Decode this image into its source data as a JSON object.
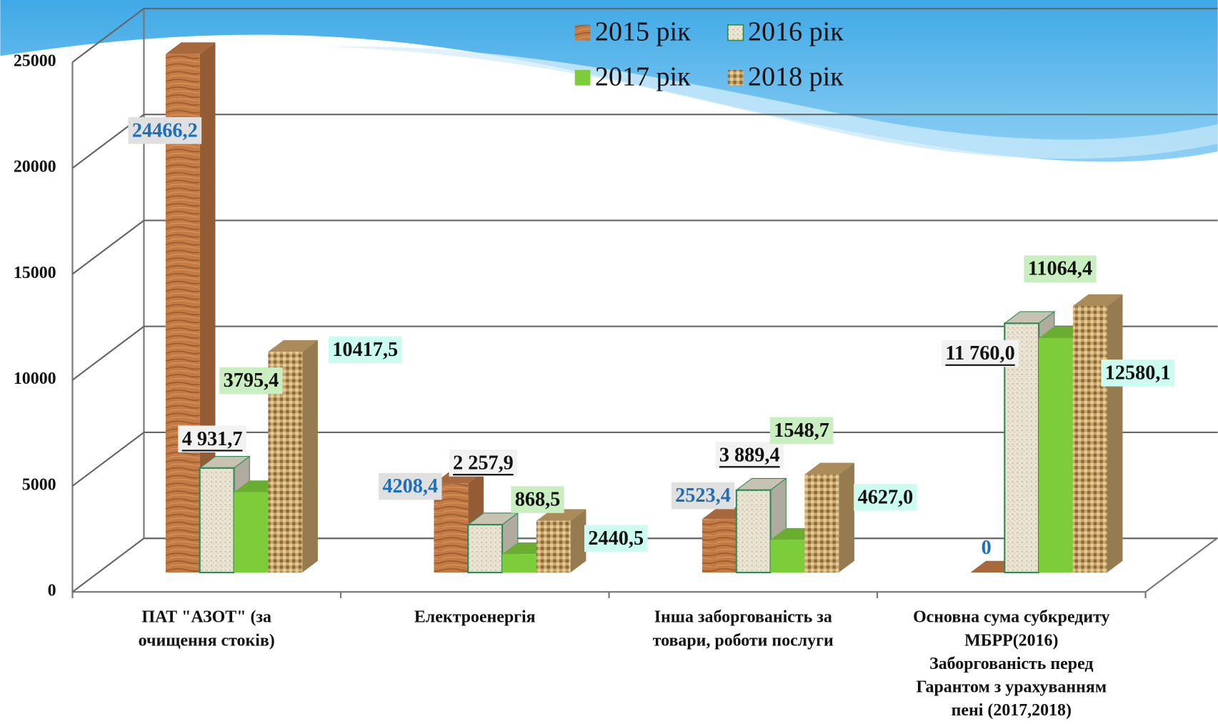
{
  "chart_data": {
    "type": "bar3d",
    "categories": [
      [
        "ПАТ \"АЗОТ\" (за",
        "очищення стоків)"
      ],
      [
        "Електроенергія"
      ],
      [
        "Інша заборгованість за",
        "товари, роботи послуги"
      ],
      [
        "Основна сума субкредиту",
        "МБРР(2016)",
        "Заборгованість перед",
        "Гарантом з урахуванням",
        "пені (2017,2018)"
      ]
    ],
    "series": [
      {
        "name": "2015 рік",
        "color": "#c47a45",
        "values": [
          24466.2,
          4208.4,
          2523.4,
          0
        ],
        "value_labels": [
          "24466,2",
          "4208,4",
          "2523,4",
          "0"
        ]
      },
      {
        "name": "2016 рік",
        "color": "#ebe4d3",
        "values": [
          4931.7,
          2257.9,
          3889.4,
          11760.0
        ],
        "value_labels": [
          "4 931,7",
          "2 257,9",
          "3 889,4",
          "11 760,0"
        ]
      },
      {
        "name": "2017 рік",
        "color": "#7dcc3a",
        "values": [
          3795.4,
          868.5,
          1548.7,
          11064.4
        ],
        "value_labels": [
          "3795,4",
          "868,5",
          "1548,7",
          "11064,4"
        ]
      },
      {
        "name": "2018 рік",
        "color": "#c9a46a",
        "values": [
          10417.5,
          2440.5,
          4627.0,
          12580.1
        ],
        "value_labels": [
          "10417,5",
          "2440,5",
          "4627,0",
          "12580,1"
        ]
      }
    ],
    "ylim": [
      0,
      25000
    ],
    "yticks": [
      0,
      5000,
      10000,
      15000,
      20000,
      25000
    ],
    "grid": true
  }
}
